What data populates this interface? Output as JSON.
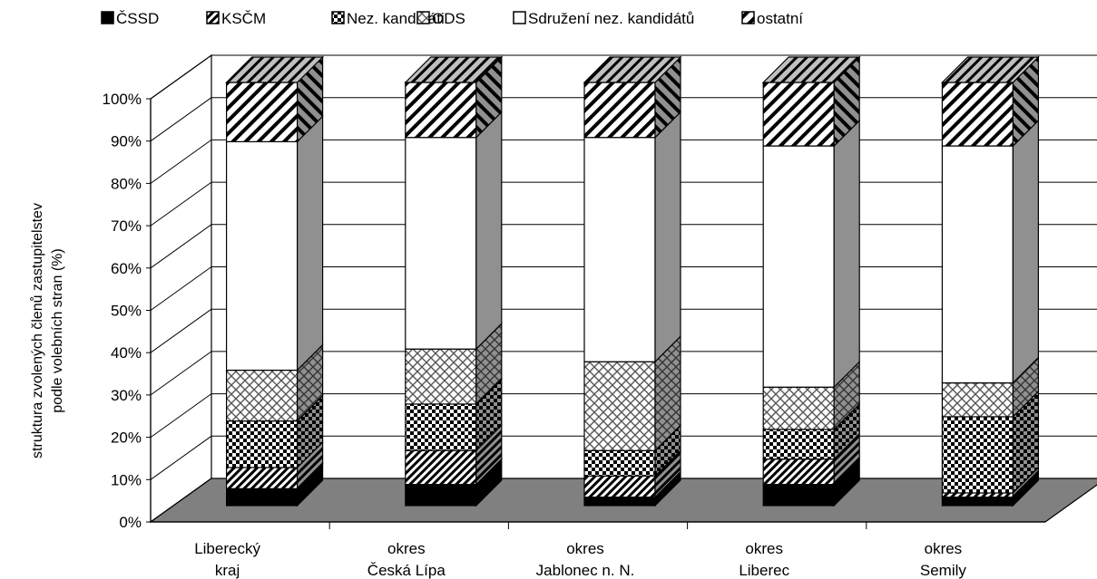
{
  "chart_data": {
    "type": "bar",
    "stacked": true,
    "percent": true,
    "three_d": true,
    "title": "",
    "ylabel_lines": [
      "struktura zvolených členů zastupitelstev",
      "podle volebních stran (%)"
    ],
    "xlabel": "",
    "ylim": [
      0,
      100
    ],
    "y_ticks": [
      "0%",
      "10%",
      "20%",
      "30%",
      "40%",
      "50%",
      "60%",
      "70%",
      "80%",
      "90%",
      "100%"
    ],
    "grid": true,
    "legend_position": "top",
    "categories": [
      [
        "Liberecký",
        "kraj"
      ],
      [
        "okres",
        "Česká Lípa"
      ],
      [
        "okres",
        "Jablonec n. N."
      ],
      [
        "okres",
        "Liberec"
      ],
      [
        "okres",
        "Semily"
      ]
    ],
    "series": [
      {
        "name": "ČSSD",
        "pattern": "solid",
        "values": [
          4,
          5,
          2,
          5,
          2
        ]
      },
      {
        "name": "KSČM",
        "pattern": "diagonal",
        "values": [
          5,
          8,
          5,
          6,
          1
        ]
      },
      {
        "name": "Nez. kandidáti",
        "pattern": "checker",
        "values": [
          11,
          11,
          6,
          7,
          18
        ]
      },
      {
        "name": "ODS",
        "pattern": "diamond",
        "values": [
          12,
          13,
          21,
          10,
          8
        ]
      },
      {
        "name": "Sdružení nez. kandidátů",
        "pattern": "white",
        "values": [
          54,
          50,
          53,
          57,
          56
        ]
      },
      {
        "name": "ostatní",
        "pattern": "hatch",
        "values": [
          14,
          13,
          13,
          15,
          15
        ]
      }
    ]
  }
}
